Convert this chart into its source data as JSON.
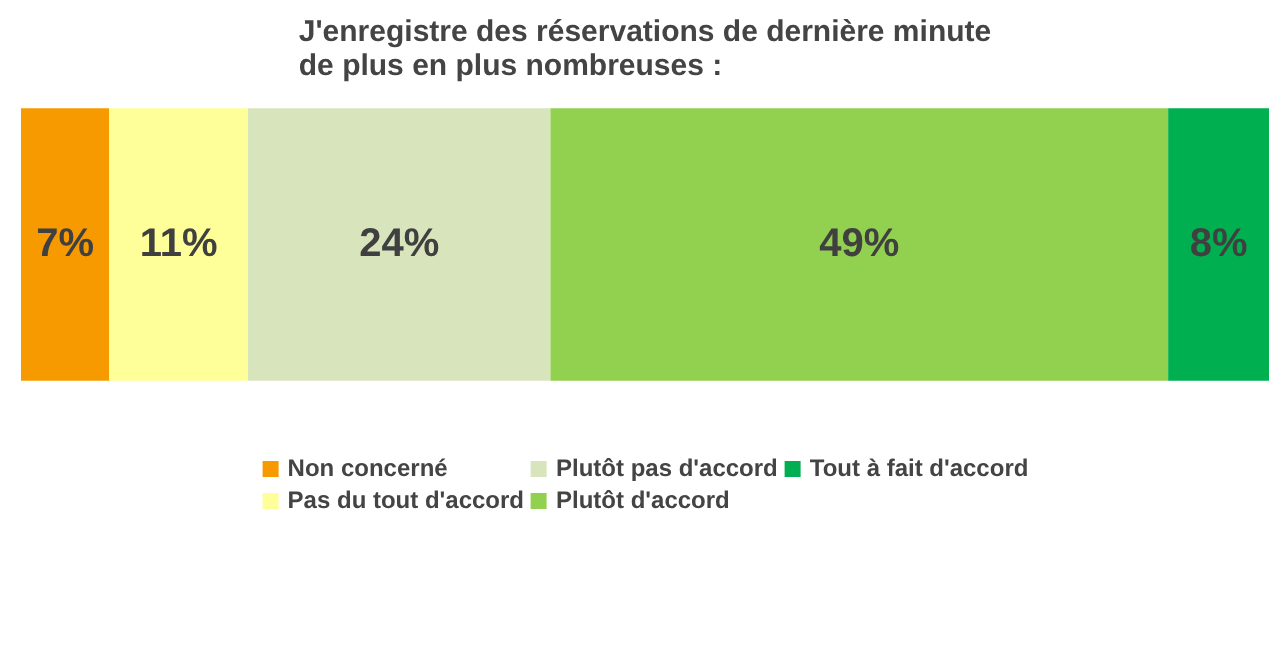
{
  "chart_data": {
    "type": "bar",
    "title": "J'enregistre des réservations de dernière minute\nde plus en plus nombreuses :",
    "orientation": "horizontal",
    "stacked": true,
    "categories": [
      null
    ],
    "legend": "bottom",
    "tick_labels": false,
    "series": [
      {
        "name": "Non concerné",
        "color": "#f79a00",
        "values": [
          7
        ],
        "value_labels": [
          "7%"
        ]
      },
      {
        "name": "Pas du tout d'accord",
        "color": "#ffff99",
        "values": [
          11
        ],
        "value_labels": [
          "11%"
        ]
      },
      {
        "name": "Plutôt pas d'accord",
        "color": "#d8e4bc",
        "values": [
          24
        ],
        "value_labels": [
          "24%"
        ]
      },
      {
        "name": "Plutôt d'accord",
        "color": "#92d050",
        "values": [
          49
        ],
        "value_labels": [
          "49%"
        ]
      },
      {
        "name": "Tout à fait d'accord",
        "color": "#00b050",
        "values": [
          8
        ],
        "value_labels": [
          "8%"
        ]
      }
    ]
  }
}
